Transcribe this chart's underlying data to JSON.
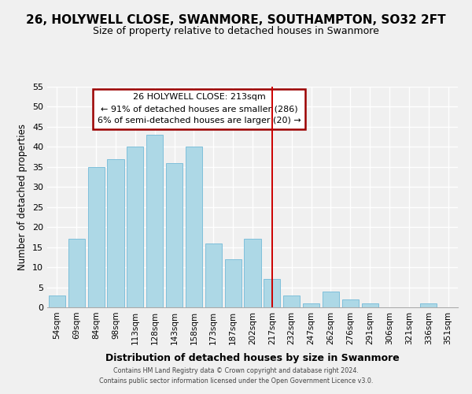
{
  "title": "26, HOLYWELL CLOSE, SWANMORE, SOUTHAMPTON, SO32 2FT",
  "subtitle": "Size of property relative to detached houses in Swanmore",
  "xlabel": "Distribution of detached houses by size in Swanmore",
  "ylabel": "Number of detached properties",
  "bar_labels": [
    "54sqm",
    "69sqm",
    "84sqm",
    "98sqm",
    "113sqm",
    "128sqm",
    "143sqm",
    "158sqm",
    "173sqm",
    "187sqm",
    "202sqm",
    "217sqm",
    "232sqm",
    "247sqm",
    "262sqm",
    "276sqm",
    "291sqm",
    "306sqm",
    "321sqm",
    "336sqm",
    "351sqm"
  ],
  "bar_heights": [
    3,
    17,
    35,
    37,
    40,
    43,
    36,
    40,
    16,
    12,
    17,
    7,
    3,
    1,
    4,
    2,
    1,
    0,
    0,
    1,
    0
  ],
  "bar_color": "#add8e6",
  "bar_edge_color": "#7fbfda",
  "vline_x_index": 11,
  "vline_color": "#cc0000",
  "ylim": [
    0,
    55
  ],
  "yticks": [
    0,
    5,
    10,
    15,
    20,
    25,
    30,
    35,
    40,
    45,
    50,
    55
  ],
  "annotation_title": "26 HOLYWELL CLOSE: 213sqm",
  "annotation_line1": "← 91% of detached houses are smaller (286)",
  "annotation_line2": "6% of semi-detached houses are larger (20) →",
  "footer1": "Contains HM Land Registry data © Crown copyright and database right 2024.",
  "footer2": "Contains public sector information licensed under the Open Government Licence v3.0.",
  "bg_color": "#f0f0f0",
  "grid_color": "#ffffff"
}
